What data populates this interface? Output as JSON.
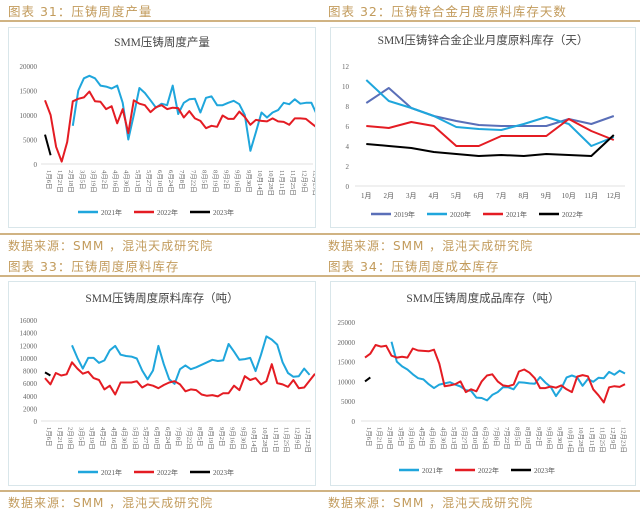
{
  "panels": [
    {
      "caption": "图表 31：压铸周度产量",
      "source": "数据来源：SMM ，混沌天成研究院"
    },
    {
      "caption": "图表 32：压铸锌合金月度原料库存天数",
      "source": "数据来源：SMM ，混沌天成研究院"
    },
    {
      "caption": "图表 33：压铸周度原料库存",
      "source": "数据来源：SMM ，混沌天成研究院"
    },
    {
      "caption": "图表 34：压铸周度成本库存",
      "source": "数据来源：SMM ，混沌天成研究院"
    }
  ],
  "colors": {
    "2019": "#5a6fb8",
    "2020": "#1fa6dc",
    "2021": "#1fa6dc",
    "2022": "#e41c23",
    "2023": "#000000",
    "caption": "#c29b5c"
  },
  "chart_data": [
    {
      "type": "line",
      "title": "SMM压铸周度产量",
      "ylim": [
        0,
        20000
      ],
      "yticks": [
        0,
        5000,
        10000,
        15000,
        20000
      ],
      "x_tick_labels": [
        "1月6日",
        "1月21日",
        "2月18日",
        "3月5日",
        "3月19日",
        "4月2日",
        "4月16日",
        "4月30日",
        "5月13日",
        "5月27日",
        "6月10日",
        "6月24日",
        "7月8日",
        "7月22日",
        "8月5日",
        "8月19日",
        "9月2日",
        "9月16日",
        "9月30日",
        "10月14日",
        "10月28日",
        "11月11日",
        "11月25日",
        "12月9日",
        "12月23日"
      ],
      "legend": "bottom",
      "series": [
        {
          "name": "2021年",
          "color": "#1fa6dc",
          "values": [
            null,
            null,
            null,
            null,
            null,
            7800,
            15000,
            17500,
            18000,
            17500,
            16000,
            15800,
            15400,
            16000,
            12500,
            5000,
            10000,
            15500,
            14500,
            13000,
            11500,
            12300,
            12000,
            16000,
            10200,
            12500,
            13200,
            13300,
            10500,
            13500,
            13800,
            12000,
            12000,
            12500,
            12900,
            12200,
            10000,
            2700,
            6500,
            10500,
            9500,
            10500,
            11000,
            12500,
            12200,
            13200,
            12300,
            12500,
            12500,
            10000
          ]
        },
        {
          "name": "2022年",
          "color": "#e41c23",
          "values": [
            13000,
            10000,
            3500,
            500,
            4500,
            12800,
            13300,
            13600,
            14800,
            12800,
            12700,
            11200,
            11800,
            8300,
            11200,
            6300,
            13000,
            12300,
            12000,
            10600,
            11600,
            12000,
            11200,
            11500,
            11400,
            9500,
            10800,
            9300,
            8800,
            7300,
            7800,
            7600,
            9900,
            9200,
            9200,
            10700,
            9600,
            8000,
            9000,
            8800,
            8700,
            9300,
            8700,
            8600,
            8000,
            9300,
            9300,
            9200,
            8300,
            7400
          ]
        },
        {
          "name": "2023年",
          "color": "#000000",
          "values": [
            6000,
            1800
          ]
        }
      ]
    },
    {
      "type": "line",
      "title": "SMM压铸锌合金企业月度原料库存（天）",
      "ylim": [
        0,
        12
      ],
      "yticks": [
        0,
        2,
        4,
        6,
        8,
        10,
        12
      ],
      "categories": [
        "1月",
        "2月",
        "3月",
        "4月",
        "5月",
        "6月",
        "7月",
        "8月",
        "9月",
        "10月",
        "11月",
        "12月"
      ],
      "legend": "bottom",
      "series": [
        {
          "name": "2019年",
          "color": "#5a6fb8",
          "values": [
            8.3,
            9.8,
            7.8,
            7.0,
            6.5,
            6.1,
            6.0,
            6.0,
            6.0,
            6.7,
            6.2,
            7.0
          ]
        },
        {
          "name": "2020年",
          "color": "#1fa6dc",
          "values": [
            10.6,
            8.5,
            7.8,
            7.0,
            5.9,
            5.7,
            5.6,
            6.2,
            6.9,
            6.2,
            4.0,
            4.9
          ]
        },
        {
          "name": "2021年",
          "color": "#e41c23",
          "values": [
            6.0,
            5.8,
            6.4,
            6.0,
            4.0,
            4.0,
            5.0,
            5.0,
            5.0,
            6.7,
            5.5,
            4.6
          ]
        },
        {
          "name": "2022年",
          "color": "#000000",
          "values": [
            4.2,
            4.0,
            3.8,
            3.4,
            3.2,
            3.0,
            3.1,
            3.0,
            3.2,
            3.1,
            3.0,
            5.1
          ]
        }
      ]
    },
    {
      "type": "line",
      "title": "SMM压铸周度原料库存（吨）",
      "ylim": [
        0,
        16000
      ],
      "yticks": [
        0,
        2000,
        4000,
        6000,
        8000,
        10000,
        12000,
        14000,
        16000
      ],
      "x_tick_labels": [
        "1月6日",
        "1月21日",
        "2月18日",
        "3月5日",
        "3月19日",
        "4月2日",
        "4月16日",
        "4月30日",
        "5月13日",
        "5月27日",
        "6月10日",
        "6月24日",
        "7月8日",
        "7月22日",
        "8月5日",
        "8月19日",
        "9月2日",
        "9月16日",
        "9月30日",
        "10月14日",
        "10月28日",
        "11月11日",
        "11月25日",
        "12月9日",
        "12月23日"
      ],
      "legend": "bottom",
      "series": [
        {
          "name": "2021年",
          "color": "#1fa6dc",
          "values": [
            null,
            null,
            null,
            null,
            null,
            12000,
            10000,
            8300,
            10000,
            10000,
            9200,
            9600,
            11200,
            11900,
            10500,
            10300,
            10200,
            9900,
            8000,
            6600,
            8000,
            11900,
            9000,
            6600,
            5900,
            8200,
            8800,
            8200,
            8500,
            8900,
            9300,
            9700,
            9500,
            9600,
            12200,
            11000,
            9700,
            9800,
            10000,
            7900,
            10500,
            13400,
            12900,
            12100,
            9300,
            7600,
            7000,
            7100,
            8300,
            7300
          ]
        },
        {
          "name": "2022年",
          "color": "#e41c23",
          "values": [
            6800,
            5800,
            7600,
            7200,
            7400,
            9300,
            8300,
            7500,
            7800,
            6800,
            6500,
            5000,
            5600,
            4200,
            6100,
            6100,
            6100,
            6300,
            5300,
            5800,
            5600,
            5200,
            5700,
            6100,
            6300,
            5800,
            4700,
            5000,
            4900,
            4200,
            4000,
            4100,
            3900,
            4400,
            4400,
            5600,
            4900,
            7100,
            6500,
            6800,
            5800,
            6300,
            9000,
            6000,
            5800,
            5400,
            6500,
            5200,
            5300,
            6400,
            7500
          ]
        },
        {
          "name": "2023年",
          "color": "#000000",
          "values": [
            7700,
            7200
          ]
        }
      ]
    },
    {
      "type": "line",
      "title": "SMM压铸周度成品库存（吨）",
      "ylim": [
        0,
        25000
      ],
      "yticks": [
        0,
        5000,
        10000,
        15000,
        20000,
        25000
      ],
      "x_tick_labels": [
        "1月6日",
        "1月21日",
        "2月18日",
        "3月5日",
        "3月19日",
        "4月2日",
        "4月16日",
        "4月30日",
        "5月13日",
        "5月27日",
        "6月10日",
        "6月24日",
        "7月8日",
        "7月22日",
        "8月5日",
        "8月19日",
        "9月2日",
        "9月16日",
        "9月30日",
        "10月14日",
        "10月28日",
        "11月11日",
        "11月25日",
        "12月9日",
        "12月23日"
      ],
      "legend": "bottom",
      "series": [
        {
          "name": "2021年",
          "color": "#1fa6dc",
          "values": [
            null,
            null,
            null,
            null,
            null,
            20000,
            15000,
            13800,
            13000,
            11800,
            10800,
            10500,
            9300,
            8300,
            9200,
            9500,
            9800,
            9200,
            8700,
            7800,
            7600,
            5900,
            5800,
            5200,
            6600,
            7300,
            8500,
            8500,
            8000,
            9800,
            9700,
            9500,
            9400,
            11100,
            9700,
            8600,
            6300,
            8200,
            11000,
            11500,
            11000,
            8900,
            10600,
            9900,
            10900,
            10800,
            12400,
            11700,
            12700,
            12000
          ]
        },
        {
          "name": "2022年",
          "color": "#e41c23",
          "values": [
            16000,
            17000,
            19200,
            18800,
            19000,
            16500,
            16000,
            16200,
            16000,
            18300,
            17800,
            17700,
            17600,
            18000,
            14500,
            8800,
            9000,
            9300,
            10000,
            7300,
            8000,
            7500,
            10000,
            11500,
            11800,
            10000,
            9000,
            8800,
            9200,
            12500,
            13000,
            12200,
            10800,
            8300,
            8300,
            8700,
            8400,
            9000,
            8000,
            7300,
            11200,
            11600,
            11300,
            8000,
            6500,
            4700,
            8500,
            8800,
            8600,
            9300
          ]
        },
        {
          "name": "2023年",
          "color": "#000000",
          "values": [
            10000,
            11000
          ]
        }
      ]
    }
  ]
}
